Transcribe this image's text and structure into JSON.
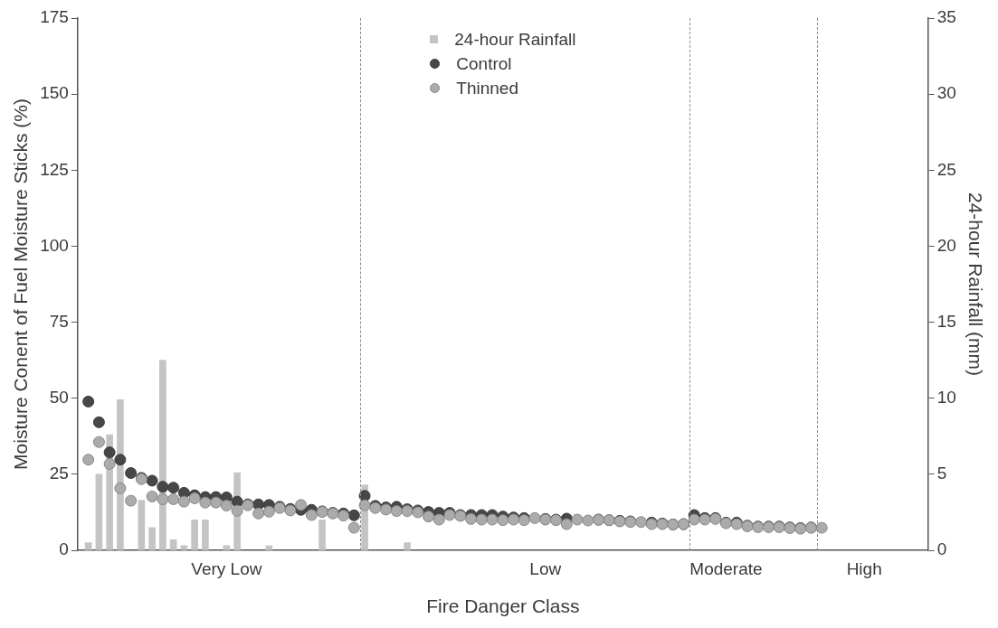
{
  "chart_data": {
    "type": "scatter",
    "xlabel": "Fire Danger Class",
    "ylabel": "Moisture Conent of Fuel Moisture Sticks (%)",
    "y2label": "24-hour Rainfall (mm)",
    "categories": [
      null,
      null,
      null,
      null,
      null,
      null,
      null,
      null,
      null,
      null,
      null,
      null,
      null,
      null,
      "Very Low",
      null,
      null,
      null,
      null,
      null,
      null,
      null,
      null,
      null,
      null,
      null,
      null,
      null,
      null,
      null,
      null,
      null,
      null,
      null,
      null,
      null,
      null,
      null,
      null,
      null,
      null,
      null,
      null,
      null,
      "Low",
      null,
      null,
      null,
      null,
      null,
      null,
      null,
      null,
      null,
      null,
      null,
      null,
      null,
      null,
      null,
      null,
      "Moderate",
      null,
      null,
      null,
      null,
      null,
      null,
      null,
      null,
      null,
      null,
      null,
      null,
      "High",
      null,
      null,
      null,
      null,
      null,
      null
    ],
    "ylim": [
      0,
      175
    ],
    "yticks": [
      0,
      25,
      50,
      75,
      100,
      125,
      150,
      175
    ],
    "y2lim": [
      0,
      35
    ],
    "y2ticks": [
      0,
      5,
      10,
      15,
      20,
      25,
      30,
      35
    ],
    "series": [
      {
        "name": "24-hour Rainfall",
        "type": "bar",
        "axis": "y2",
        "color": "#c4c4c4",
        "values": [
          null,
          0.5,
          5.0,
          7.6,
          9.9,
          null,
          3.3,
          1.5,
          12.5,
          0.7,
          0.3,
          2.0,
          2.0,
          null,
          0.3,
          5.1,
          null,
          null,
          0.3,
          null,
          null,
          null,
          null,
          2.0,
          null,
          null,
          null,
          4.3,
          null,
          null,
          null,
          0.5,
          null,
          null,
          null,
          null,
          null,
          null,
          null,
          null,
          null,
          null,
          null,
          null,
          null,
          null,
          null,
          null,
          null,
          null,
          null,
          null,
          null,
          null,
          null,
          null,
          null,
          null,
          null,
          null,
          null,
          null,
          null,
          null,
          null,
          null,
          null,
          null,
          null,
          null,
          null,
          null,
          null,
          null,
          null,
          null,
          null,
          null,
          null,
          null,
          null
        ]
      },
      {
        "name": "Control",
        "color": "#474747",
        "values": [
          null,
          48.9,
          42.1,
          32.2,
          29.8,
          25.4,
          23.8,
          22.9,
          20.9,
          20.6,
          18.9,
          18.1,
          17.5,
          17.5,
          17.4,
          16.0,
          15.1,
          15.1,
          14.9,
          14.3,
          13.6,
          13.3,
          13.3,
          12.8,
          12.3,
          12.1,
          11.5,
          17.9,
          14.6,
          14.1,
          14.3,
          13.5,
          13.1,
          12.6,
          12.3,
          12.3,
          11.6,
          11.6,
          11.6,
          11.6,
          11.1,
          10.8,
          10.6,
          null,
          10.3,
          10.1,
          10.4,
          null,
          null,
          10.1,
          9.9,
          9.7,
          9.5,
          null,
          9.1,
          8.8,
          8.5,
          8.6,
          11.6,
          10.6,
          10.6,
          9.1,
          9.1,
          8.1,
          7.8,
          7.8,
          7.8,
          7.5,
          7.3,
          7.5,
          null,
          null,
          null,
          null,
          null,
          null,
          null,
          null,
          null,
          null,
          null
        ]
      },
      {
        "name": "Thinned",
        "color": "#ababab",
        "values": [
          null,
          29.8,
          35.6,
          28.4,
          20.4,
          16.3,
          23.4,
          17.7,
          16.8,
          16.8,
          16.0,
          17.1,
          15.7,
          15.7,
          14.7,
          13.0,
          14.8,
          12.1,
          12.7,
          13.9,
          13.1,
          14.9,
          11.6,
          12.6,
          12.1,
          11.4,
          7.4,
          14.8,
          13.9,
          13.4,
          12.9,
          12.9,
          12.5,
          11.1,
          10.1,
          11.6,
          11.3,
          10.3,
          10.1,
          10.1,
          9.9,
          10.1,
          9.9,
          10.6,
          10.1,
          9.9,
          8.6,
          10.1,
          9.8,
          10.0,
          9.9,
          9.5,
          9.3,
          9.3,
          8.6,
          8.6,
          8.5,
          8.6,
          10.1,
          10.1,
          10.3,
          8.9,
          8.6,
          7.9,
          7.6,
          7.6,
          7.6,
          7.3,
          7.1,
          7.4,
          7.4,
          null,
          null,
          null,
          null,
          null,
          null,
          null,
          null,
          null,
          null
        ]
      }
    ],
    "legend": "top",
    "marker": "circle",
    "grid": false
  }
}
